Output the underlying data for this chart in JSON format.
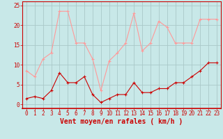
{
  "x": [
    0,
    1,
    2,
    3,
    4,
    5,
    6,
    7,
    8,
    9,
    10,
    11,
    12,
    13,
    14,
    15,
    16,
    17,
    18,
    19,
    20,
    21,
    22,
    23
  ],
  "wind_avg": [
    1.5,
    2,
    1.5,
    3.5,
    8,
    5.5,
    5.5,
    7,
    2.5,
    0.5,
    1.5,
    2.5,
    2.5,
    5.5,
    3,
    3,
    4,
    4,
    5.5,
    5.5,
    7,
    8.5,
    10.5,
    10.5
  ],
  "wind_gust": [
    8.5,
    7,
    11.5,
    13,
    23.5,
    23.5,
    15.5,
    15.5,
    11.5,
    3.5,
    11,
    13,
    15.5,
    23,
    13.5,
    15.5,
    21,
    19.5,
    15.5,
    15.5,
    15.5,
    21.5,
    21.5,
    21.5
  ],
  "bg_color": "#c8e8e8",
  "grid_color": "#aac8c8",
  "line_color_avg": "#cc0000",
  "line_color_gust": "#ff9999",
  "xlabel": "Vent moyen/en rafales ( km/h )",
  "xlabel_color": "#cc0000",
  "tick_color": "#cc0000",
  "axis_color": "#cc0000",
  "ylim": [
    -1,
    26
  ],
  "xlim": [
    -0.5,
    23.5
  ],
  "yticks": [
    0,
    5,
    10,
    15,
    20,
    25
  ],
  "xticks": [
    0,
    1,
    2,
    3,
    4,
    5,
    6,
    7,
    8,
    9,
    10,
    11,
    12,
    13,
    14,
    15,
    16,
    17,
    18,
    19,
    20,
    21,
    22,
    23
  ],
  "tick_fontsize": 5.5,
  "xlabel_fontsize": 7,
  "linewidth": 0.8,
  "markersize": 3
}
